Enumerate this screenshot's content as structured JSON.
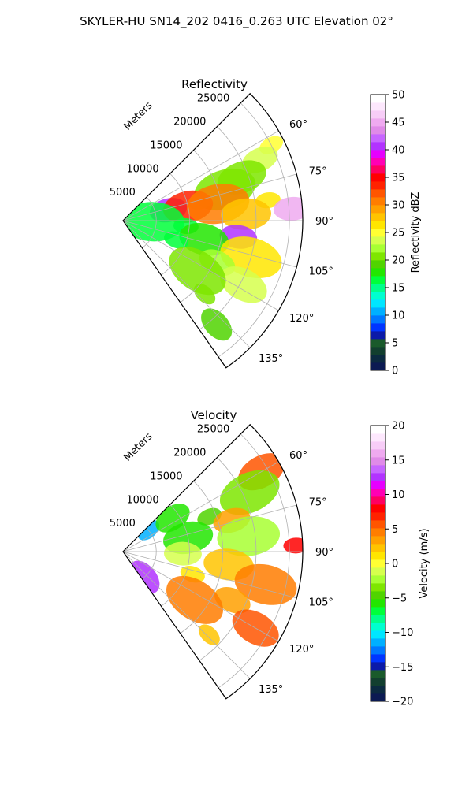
{
  "suptitle": "SKYLER-HU  SN14_202  0416_0.263 UTC Elevation 02°",
  "chart_data": [
    {
      "type": "heatmap",
      "title": "Reflectivity",
      "range_axis_label": "Meters",
      "range_ticks": [
        5000,
        10000,
        15000,
        20000,
        25000
      ],
      "range_tick_labels": [
        "5000",
        "10000",
        "15000",
        "20000",
        "25000"
      ],
      "azimuth_ticks": [
        60,
        75,
        90,
        105,
        120,
        135
      ],
      "azimuth_tick_labels": [
        "60°",
        "75°",
        "90°",
        "105°",
        "120°",
        "135°"
      ],
      "sector_azimuth_range_deg": [
        45,
        145
      ],
      "max_range": 27000,
      "colorbar": {
        "label": "Reflectivity dBZ",
        "vmin": 0,
        "vmax": 50,
        "ticks": [
          0,
          5,
          10,
          15,
          20,
          25,
          30,
          35,
          40,
          45,
          50
        ],
        "tick_labels": [
          "0",
          "5",
          "10",
          "15",
          "20",
          "25",
          "30",
          "35",
          "40",
          "45",
          "50"
        ],
        "colormap": [
          "#0b1a52",
          "#0b2a40",
          "#123f2f",
          "#1a5a2b",
          "#0b1aa8",
          "#0035ff",
          "#0078ff",
          "#00b0ff",
          "#00e6ff",
          "#00ffcf",
          "#00ff8a",
          "#00ff3a",
          "#22e600",
          "#50d400",
          "#7ee600",
          "#a8ff33",
          "#d6ff4d",
          "#ffff33",
          "#ffe600",
          "#ffc400",
          "#ffa000",
          "#ff7d00",
          "#ff5500",
          "#ff2200",
          "#ff0000",
          "#ff0060",
          "#ff00b4",
          "#e600ff",
          "#b233ff",
          "#c766ff",
          "#e08be8",
          "#efaaf0",
          "#f7cdf7",
          "#fde8fd",
          "#ffffff"
        ]
      },
      "echo_regions": [
        {
          "az": 63,
          "r": 25000,
          "value": 25
        },
        {
          "az": 66,
          "r": 22500,
          "value": 23
        },
        {
          "az": 70,
          "r": 19000,
          "value": 20
        },
        {
          "az": 73,
          "r": 16000,
          "value": 21
        },
        {
          "az": 76,
          "r": 12000,
          "value": 22
        },
        {
          "az": 77,
          "r": 7000,
          "value": 40
        },
        {
          "az": 78,
          "r": 10000,
          "value": 33
        },
        {
          "az": 80,
          "r": 14500,
          "value": 30
        },
        {
          "az": 82,
          "r": 22000,
          "value": 27
        },
        {
          "az": 86,
          "r": 25500,
          "value": 45
        },
        {
          "az": 87,
          "r": 18500,
          "value": 28
        },
        {
          "az": 92,
          "r": 4500,
          "value": 16
        },
        {
          "az": 95,
          "r": 9500,
          "value": 17
        },
        {
          "az": 98,
          "r": 17500,
          "value": 40
        },
        {
          "az": 103,
          "r": 12500,
          "value": 18
        },
        {
          "az": 106,
          "r": 20000,
          "value": 26
        },
        {
          "az": 110,
          "r": 8500,
          "value": 17
        },
        {
          "az": 114,
          "r": 15500,
          "value": 22
        },
        {
          "az": 118,
          "r": 20500,
          "value": 24
        },
        {
          "az": 124,
          "r": 13500,
          "value": 21
        },
        {
          "az": 132,
          "r": 16500,
          "value": 20
        },
        {
          "az": 138,
          "r": 21000,
          "value": 19
        }
      ]
    },
    {
      "type": "heatmap",
      "title": "Velocity",
      "range_axis_label": "Meters",
      "range_ticks": [
        5000,
        10000,
        15000,
        20000,
        25000
      ],
      "range_tick_labels": [
        "5000",
        "10000",
        "15000",
        "20000",
        "25000"
      ],
      "azimuth_ticks": [
        60,
        75,
        90,
        105,
        120,
        135
      ],
      "azimuth_tick_labels": [
        "60°",
        "75°",
        "90°",
        "105°",
        "120°",
        "135°"
      ],
      "sector_azimuth_range_deg": [
        45,
        145
      ],
      "max_range": 27000,
      "colorbar": {
        "label": "Velocity (m/s)",
        "vmin": -20,
        "vmax": 20,
        "ticks": [
          -20,
          -15,
          -10,
          -5,
          0,
          5,
          10,
          15,
          20
        ],
        "tick_labels": [
          "−20",
          "−15",
          "−10",
          "−5",
          "0",
          "5",
          "10",
          "15",
          "20"
        ],
        "colormap": [
          "#0b1a52",
          "#0b2a40",
          "#123f2f",
          "#1a5a2b",
          "#0b1aa8",
          "#0035ff",
          "#0078ff",
          "#00b0ff",
          "#00e6ff",
          "#00ffcf",
          "#00ff8a",
          "#00ff3a",
          "#22e600",
          "#50d400",
          "#7ee600",
          "#a8ff33",
          "#d6ff4d",
          "#ffff33",
          "#ffe600",
          "#ffc400",
          "#ffa000",
          "#ff7d00",
          "#ff5500",
          "#ff2200",
          "#ff0000",
          "#ff0060",
          "#ff00b4",
          "#e600ff",
          "#b233ff",
          "#c766ff",
          "#e08be8",
          "#efaaf0",
          "#f7cdf7",
          "#fde8fd",
          "#ffffff"
        ]
      },
      "echo_regions": [
        {
          "az": 50,
          "r": 5000,
          "value": -12
        },
        {
          "az": 56,
          "r": 9000,
          "value": -6
        },
        {
          "az": 60,
          "r": 24000,
          "value": 6
        },
        {
          "az": 65,
          "r": 21000,
          "value": -3
        },
        {
          "az": 68,
          "r": 14000,
          "value": -5
        },
        {
          "az": 74,
          "r": 17000,
          "value": 3
        },
        {
          "az": 78,
          "r": 10000,
          "value": -6
        },
        {
          "az": 83,
          "r": 19000,
          "value": -2
        },
        {
          "az": 88,
          "r": 26000,
          "value": 8
        },
        {
          "az": 92,
          "r": 9000,
          "value": -1
        },
        {
          "az": 97,
          "r": 16000,
          "value": 2
        },
        {
          "az": 103,
          "r": 22000,
          "value": 5
        },
        {
          "az": 108,
          "r": 11000,
          "value": 1
        },
        {
          "az": 114,
          "r": 18000,
          "value": 3
        },
        {
          "az": 120,
          "r": 23000,
          "value": 6
        },
        {
          "az": 124,
          "r": 13000,
          "value": 4
        },
        {
          "az": 134,
          "r": 18000,
          "value": 2
        },
        {
          "az": 140,
          "r": 5000,
          "value": 13
        }
      ]
    }
  ]
}
